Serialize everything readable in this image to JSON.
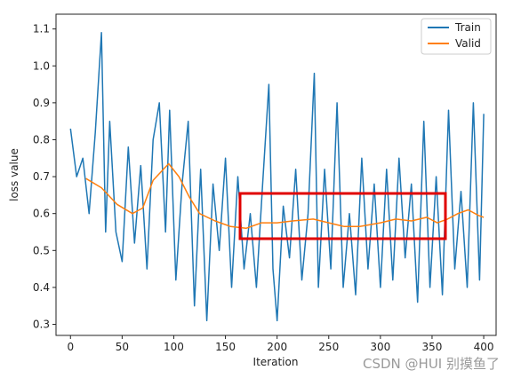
{
  "chart_data": {
    "type": "line",
    "xlabel": "Iteration",
    "ylabel": "loss value",
    "xlim": [
      -14,
      412
    ],
    "ylim": [
      0.27,
      1.14
    ],
    "xticks": [
      0,
      50,
      100,
      150,
      200,
      250,
      300,
      350,
      400
    ],
    "yticks": [
      0.3,
      0.4,
      0.5,
      0.6,
      0.7,
      0.8,
      0.9,
      1.0,
      1.1
    ],
    "grid": false,
    "legend": "top-right",
    "series": [
      {
        "name": "Train",
        "color": "#1f77b4",
        "x": [
          0,
          6,
          12,
          18,
          24,
          30,
          34,
          38,
          44,
          50,
          56,
          62,
          68,
          74,
          80,
          86,
          92,
          96,
          102,
          108,
          114,
          120,
          126,
          132,
          138,
          144,
          150,
          156,
          162,
          168,
          174,
          180,
          186,
          192,
          196,
          200,
          206,
          212,
          218,
          224,
          230,
          236,
          240,
          246,
          252,
          258,
          264,
          270,
          276,
          282,
          288,
          294,
          300,
          306,
          312,
          318,
          324,
          330,
          336,
          342,
          348,
          354,
          360,
          366,
          372,
          378,
          384,
          390,
          396,
          400
        ],
        "y": [
          0.83,
          0.7,
          0.75,
          0.6,
          0.82,
          1.09,
          0.55,
          0.85,
          0.55,
          0.47,
          0.78,
          0.52,
          0.73,
          0.45,
          0.8,
          0.9,
          0.55,
          0.88,
          0.42,
          0.68,
          0.85,
          0.35,
          0.72,
          0.31,
          0.68,
          0.5,
          0.75,
          0.4,
          0.7,
          0.45,
          0.6,
          0.4,
          0.68,
          0.95,
          0.45,
          0.31,
          0.62,
          0.48,
          0.72,
          0.42,
          0.6,
          0.98,
          0.4,
          0.72,
          0.45,
          0.9,
          0.4,
          0.6,
          0.38,
          0.75,
          0.45,
          0.68,
          0.4,
          0.72,
          0.42,
          0.75,
          0.48,
          0.68,
          0.36,
          0.85,
          0.4,
          0.7,
          0.38,
          0.88,
          0.45,
          0.66,
          0.4,
          0.9,
          0.42,
          0.87
        ]
      },
      {
        "name": "Valid",
        "color": "#ff7f0e",
        "x": [
          15,
          30,
          45,
          60,
          70,
          80,
          90,
          95,
          105,
          115,
          125,
          140,
          155,
          170,
          185,
          200,
          215,
          235,
          250,
          265,
          280,
          300,
          315,
          330,
          345,
          355,
          365,
          375,
          385,
          395,
          400
        ],
        "y": [
          0.695,
          0.67,
          0.625,
          0.6,
          0.615,
          0.69,
          0.72,
          0.735,
          0.7,
          0.645,
          0.6,
          0.58,
          0.565,
          0.56,
          0.575,
          0.575,
          0.58,
          0.585,
          0.575,
          0.565,
          0.565,
          0.575,
          0.585,
          0.58,
          0.59,
          0.575,
          0.585,
          0.6,
          0.61,
          0.595,
          0.59
        ]
      }
    ]
  },
  "annotation": {
    "color": "#e00000"
  },
  "watermark": "CSDN @HUI 别摸鱼了"
}
